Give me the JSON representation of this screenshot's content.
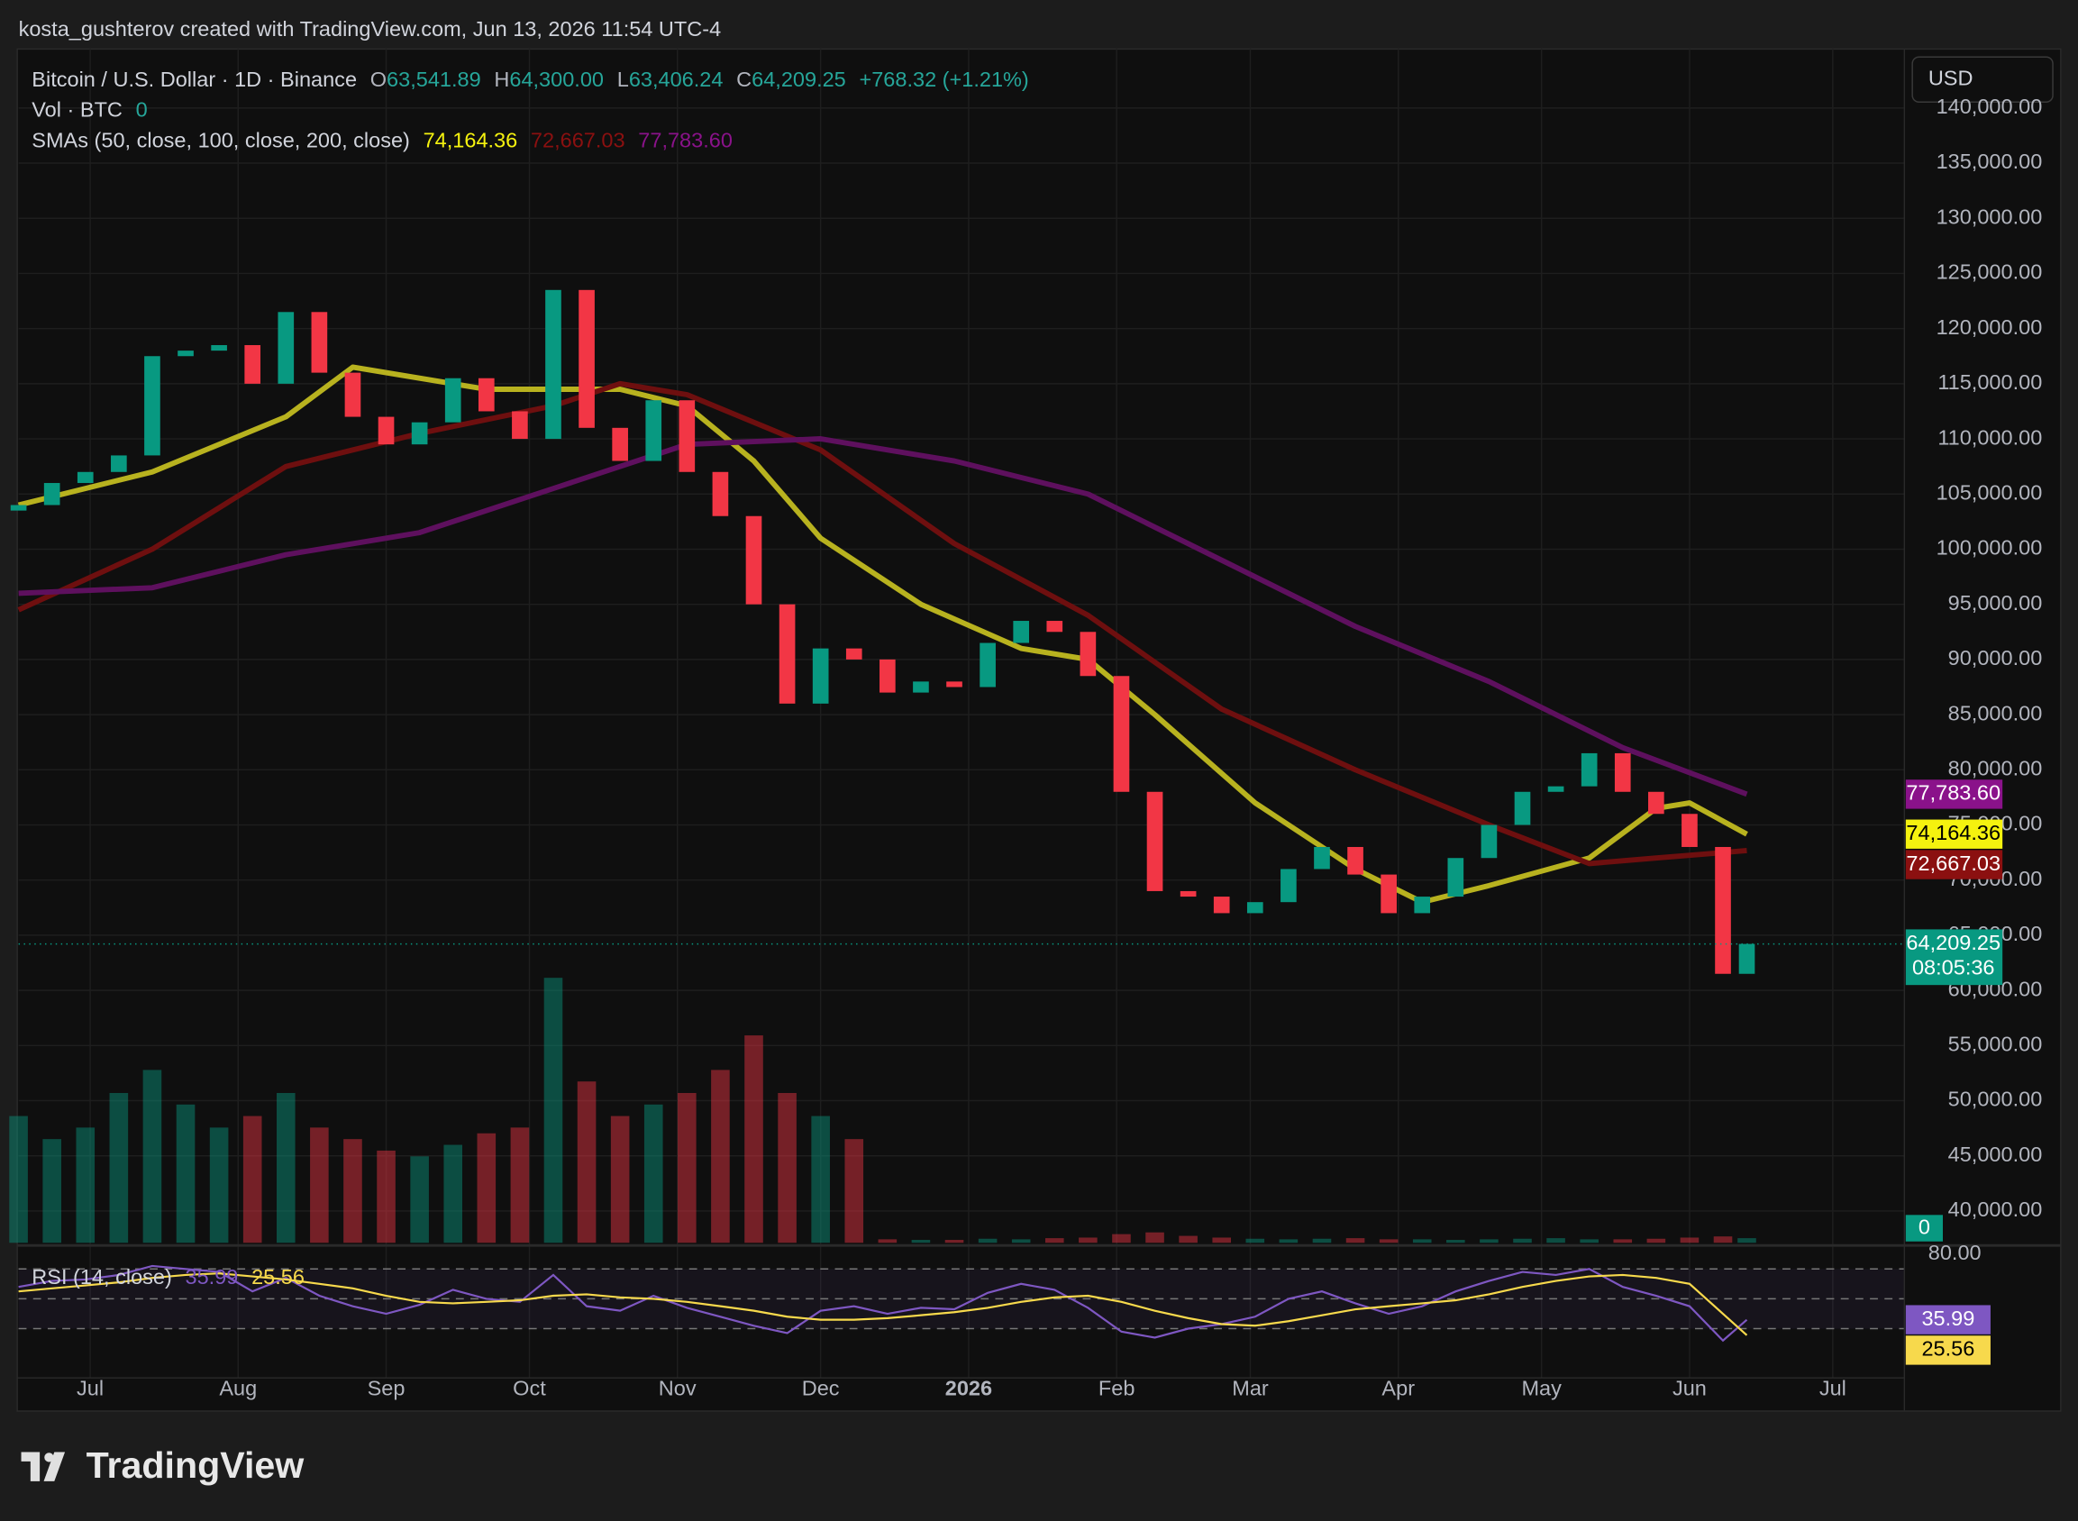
{
  "header": {
    "attribution": "kosta_gushterov created with TradingView.com, Jun 13, 2026 11:54 UTC-4"
  },
  "currency": "USD",
  "footer": {
    "brand": "TradingView"
  },
  "chart_data": {
    "type": "candlestick",
    "title": "Bitcoin / U.S. Dollar · 1D · Binance",
    "ohlc_legend": [
      {
        "label": "O",
        "value": "63,541.89"
      },
      {
        "label": "H",
        "value": "64,300.00"
      },
      {
        "label": "L",
        "value": "63,406.24"
      },
      {
        "label": "C",
        "value": "64,209.25"
      }
    ],
    "change": "+768.32 (+1.21%)",
    "volume_title": "Vol · BTC",
    "volume_value_label": "0",
    "sma_title": "SMAs (50, close, 100, close, 200, close)",
    "up_color": "#089981",
    "down_color": "#f23645",
    "first_open": 103500,
    "x": [
      0,
      7,
      14,
      21,
      28,
      35,
      42,
      49,
      56,
      63,
      70,
      77,
      84,
      91,
      98,
      105,
      112,
      119,
      126,
      133,
      140,
      147,
      154,
      161,
      168,
      175,
      182,
      189,
      196,
      203,
      210,
      217,
      224,
      231,
      238,
      245,
      252,
      259,
      266,
      273,
      280,
      287,
      294,
      301,
      308,
      315,
      322,
      329,
      336,
      343,
      350,
      357,
      362
    ],
    "values": [
      104000,
      106000,
      107000,
      108500,
      117500,
      118000,
      118500,
      115000,
      121500,
      116000,
      112000,
      109500,
      111500,
      115500,
      112500,
      110000,
      123500,
      111000,
      108000,
      113500,
      107000,
      103000,
      95000,
      86000,
      91000,
      90000,
      87000,
      88000,
      87500,
      91500,
      93500,
      92500,
      88500,
      78000,
      69000,
      68500,
      67000,
      68000,
      71000,
      73000,
      70500,
      67000,
      68500,
      72000,
      75000,
      78000,
      78500,
      81500,
      78000,
      76000,
      73000,
      61500,
      64209.25
    ],
    "last_value_label": "64,209.25",
    "countdown": "08:05:36",
    "volume": [
      22000,
      18000,
      20000,
      26000,
      30000,
      24000,
      20000,
      22000,
      26000,
      20000,
      18000,
      16000,
      15000,
      17000,
      19000,
      20000,
      46000,
      28000,
      22000,
      24000,
      26000,
      30000,
      36000,
      26000,
      22000,
      18000,
      600,
      500,
      500,
      700,
      600,
      800,
      900,
      1500,
      1800,
      1200,
      900,
      700,
      600,
      700,
      800,
      600,
      600,
      500,
      600,
      700,
      800,
      600,
      600,
      700,
      900,
      1100,
      800
    ],
    "xlim": [
      0,
      395
    ],
    "xticks": [
      {
        "value": 15,
        "label": "Jul"
      },
      {
        "value": 46,
        "label": "Aug"
      },
      {
        "value": 77,
        "label": "Sep"
      },
      {
        "value": 107,
        "label": "Oct"
      },
      {
        "value": 138,
        "label": "Nov"
      },
      {
        "value": 168,
        "label": "Dec"
      },
      {
        "value": 199,
        "label": "2026"
      },
      {
        "value": 230,
        "label": "Feb"
      },
      {
        "value": 258,
        "label": "Mar"
      },
      {
        "value": 289,
        "label": "Apr"
      },
      {
        "value": 319,
        "label": "May"
      },
      {
        "value": 350,
        "label": "Jun"
      },
      {
        "value": 380,
        "label": "Jul"
      }
    ],
    "ylim": [
      37117,
      145345
    ],
    "yticks": [
      {
        "value": 40000,
        "label": "40,000.00"
      },
      {
        "value": 45000,
        "label": "45,000.00"
      },
      {
        "value": 50000,
        "label": "50,000.00"
      },
      {
        "value": 55000,
        "label": "55,000.00"
      },
      {
        "value": 60000,
        "label": "60,000.00"
      },
      {
        "value": 65000,
        "label": "65,000.00"
      },
      {
        "value": 70000,
        "label": "70,000.00"
      },
      {
        "value": 75000,
        "label": "75,000.00"
      },
      {
        "value": 80000,
        "label": "80,000.00"
      },
      {
        "value": 85000,
        "label": "85,000.00"
      },
      {
        "value": 90000,
        "label": "90,000.00"
      },
      {
        "value": 95000,
        "label": "95,000.00"
      },
      {
        "value": 100000,
        "label": "100,000.00"
      },
      {
        "value": 105000,
        "label": "105,000.00"
      },
      {
        "value": 110000,
        "label": "110,000.00"
      },
      {
        "value": 115000,
        "label": "115,000.00"
      },
      {
        "value": 120000,
        "label": "120,000.00"
      },
      {
        "value": 125000,
        "label": "125,000.00"
      },
      {
        "value": 130000,
        "label": "130,000.00"
      },
      {
        "value": 135000,
        "label": "135,000.00"
      },
      {
        "value": 140000,
        "label": "140,000.00"
      }
    ],
    "grid": true,
    "lines": [
      {
        "color": "#f5f20f",
        "stroke": "#b8b21f",
        "x": [
          0,
          28,
          56,
          70,
          98,
          126,
          140,
          154,
          168,
          189,
          210,
          224,
          238,
          259,
          280,
          294,
          308,
          329,
          343,
          350,
          362
        ],
        "values": [
          104000,
          107000,
          112000,
          116500,
          114500,
          114500,
          113000,
          108000,
          101000,
          95000,
          91000,
          90000,
          85000,
          77000,
          71000,
          68000,
          69500,
          72000,
          76500,
          77000,
          74164.36
        ],
        "value_label": "74,164.36"
      },
      {
        "color": "#8b1010",
        "stroke": "#6e0f0f",
        "x": [
          0,
          28,
          56,
          84,
          112,
          126,
          140,
          168,
          196,
          224,
          252,
          280,
          308,
          329,
          343,
          362
        ],
        "values": [
          94500,
          100000,
          107500,
          110500,
          113000,
          115000,
          114000,
          109000,
          100500,
          94000,
          85500,
          80000,
          75000,
          71500,
          72000,
          72667.03
        ],
        "value_label": "72,667.03"
      },
      {
        "color": "#8a128a",
        "stroke": "#5e105e",
        "x": [
          0,
          28,
          56,
          84,
          112,
          140,
          168,
          196,
          224,
          252,
          280,
          308,
          336,
          362
        ],
        "values": [
          96000,
          96500,
          99500,
          101500,
          105500,
          109500,
          110000,
          108000,
          105000,
          99000,
          93000,
          88000,
          82000,
          77783.6
        ],
        "value_label": "77,783.60"
      }
    ],
    "rsi": {
      "title": "RSI (14, close)",
      "ylim": [
        -3,
        84
      ],
      "yticks": [
        {
          "value": 80,
          "label": "80.00"
        }
      ],
      "levels": [
        30,
        50,
        70
      ],
      "color": "#7e57c2",
      "values": [
        58,
        62,
        63,
        66,
        72,
        70,
        68,
        55,
        64,
        52,
        45,
        40,
        46,
        56,
        50,
        48,
        66,
        45,
        42,
        52,
        44,
        38,
        32,
        27,
        42,
        45,
        40,
        44,
        43,
        54,
        60,
        56,
        44,
        28,
        24,
        30,
        33,
        38,
        50,
        55,
        47,
        40,
        45,
        55,
        62,
        68,
        66,
        70,
        58,
        52,
        45,
        22,
        35.99
      ],
      "value_label": "35.99",
      "ma_color": "#f7d94c",
      "ma_values": [
        55,
        57,
        59,
        61,
        64,
        66,
        67,
        65,
        63,
        60,
        57,
        52,
        48,
        47,
        48,
        49,
        52,
        53,
        51,
        50,
        48,
        45,
        42,
        38,
        36,
        36,
        37,
        39,
        41,
        44,
        48,
        51,
        52,
        48,
        42,
        37,
        33,
        32,
        35,
        39,
        43,
        45,
        47,
        49,
        53,
        58,
        62,
        65,
        66,
        64,
        60,
        40,
        25.56
      ],
      "ma_value_label": "25.56"
    }
  }
}
